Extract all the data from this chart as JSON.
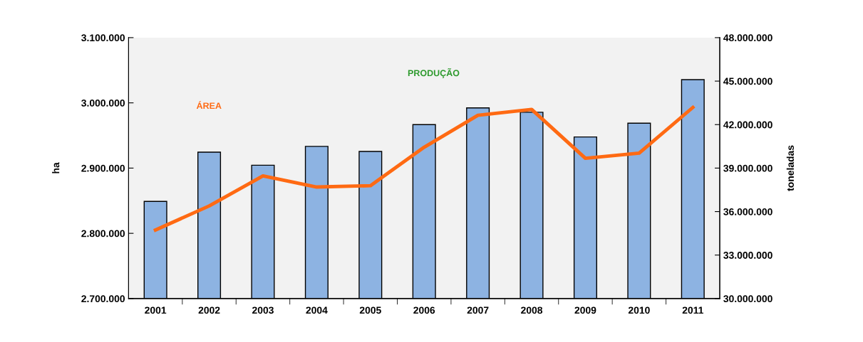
{
  "chart_data": {
    "type": "bar",
    "ylabel": "ha",
    "y2label": "toneladas",
    "categories": [
      "2001",
      "2002",
      "2003",
      "2004",
      "2005",
      "2006",
      "2007",
      "2008",
      "2009",
      "2010",
      "2011"
    ],
    "series": [
      {
        "axis": "y2",
        "color": "#8db3e2",
        "values": [
          36700000,
          40100000,
          39200000,
          40500000,
          40150000,
          42000000,
          43150000,
          42850000,
          41150000,
          42100000,
          45100000
        ]
      },
      {
        "name": "ÁREA",
        "type": "line",
        "axis": "y",
        "color": "#ff6a13",
        "values": [
          2805000,
          2842000,
          2888000,
          2871000,
          2873000,
          2932000,
          2981000,
          2990000,
          2915000,
          2923000,
          2993000
        ]
      }
    ],
    "annotations": [
      "PRODUÇÃO"
    ],
    "ylim": [
      2700000,
      3100000
    ],
    "yticks": [
      {
        "value": 2700000,
        "label": "2.700.000"
      },
      {
        "value": 2800000,
        "label": "2.800.000"
      },
      {
        "value": 2900000,
        "label": "2.900.000"
      },
      {
        "value": 3000000,
        "label": "3.000.000"
      },
      {
        "value": 3100000,
        "label": "3.100.000"
      }
    ],
    "y2lim": [
      30000000,
      48000000
    ],
    "y2ticks": [
      {
        "value": 30000000,
        "label": "30.000.000"
      },
      {
        "value": 33000000,
        "label": "33.000.000"
      },
      {
        "value": 36000000,
        "label": "36.000.000"
      },
      {
        "value": 39000000,
        "label": "39.000.000"
      },
      {
        "value": 42000000,
        "label": "42.000.000"
      },
      {
        "value": 45000000,
        "label": "45.000.000"
      },
      {
        "value": 48000000,
        "label": "48.000.000"
      }
    ],
    "grid": false,
    "legend": false,
    "marker": "none",
    "line_style": "solid"
  }
}
